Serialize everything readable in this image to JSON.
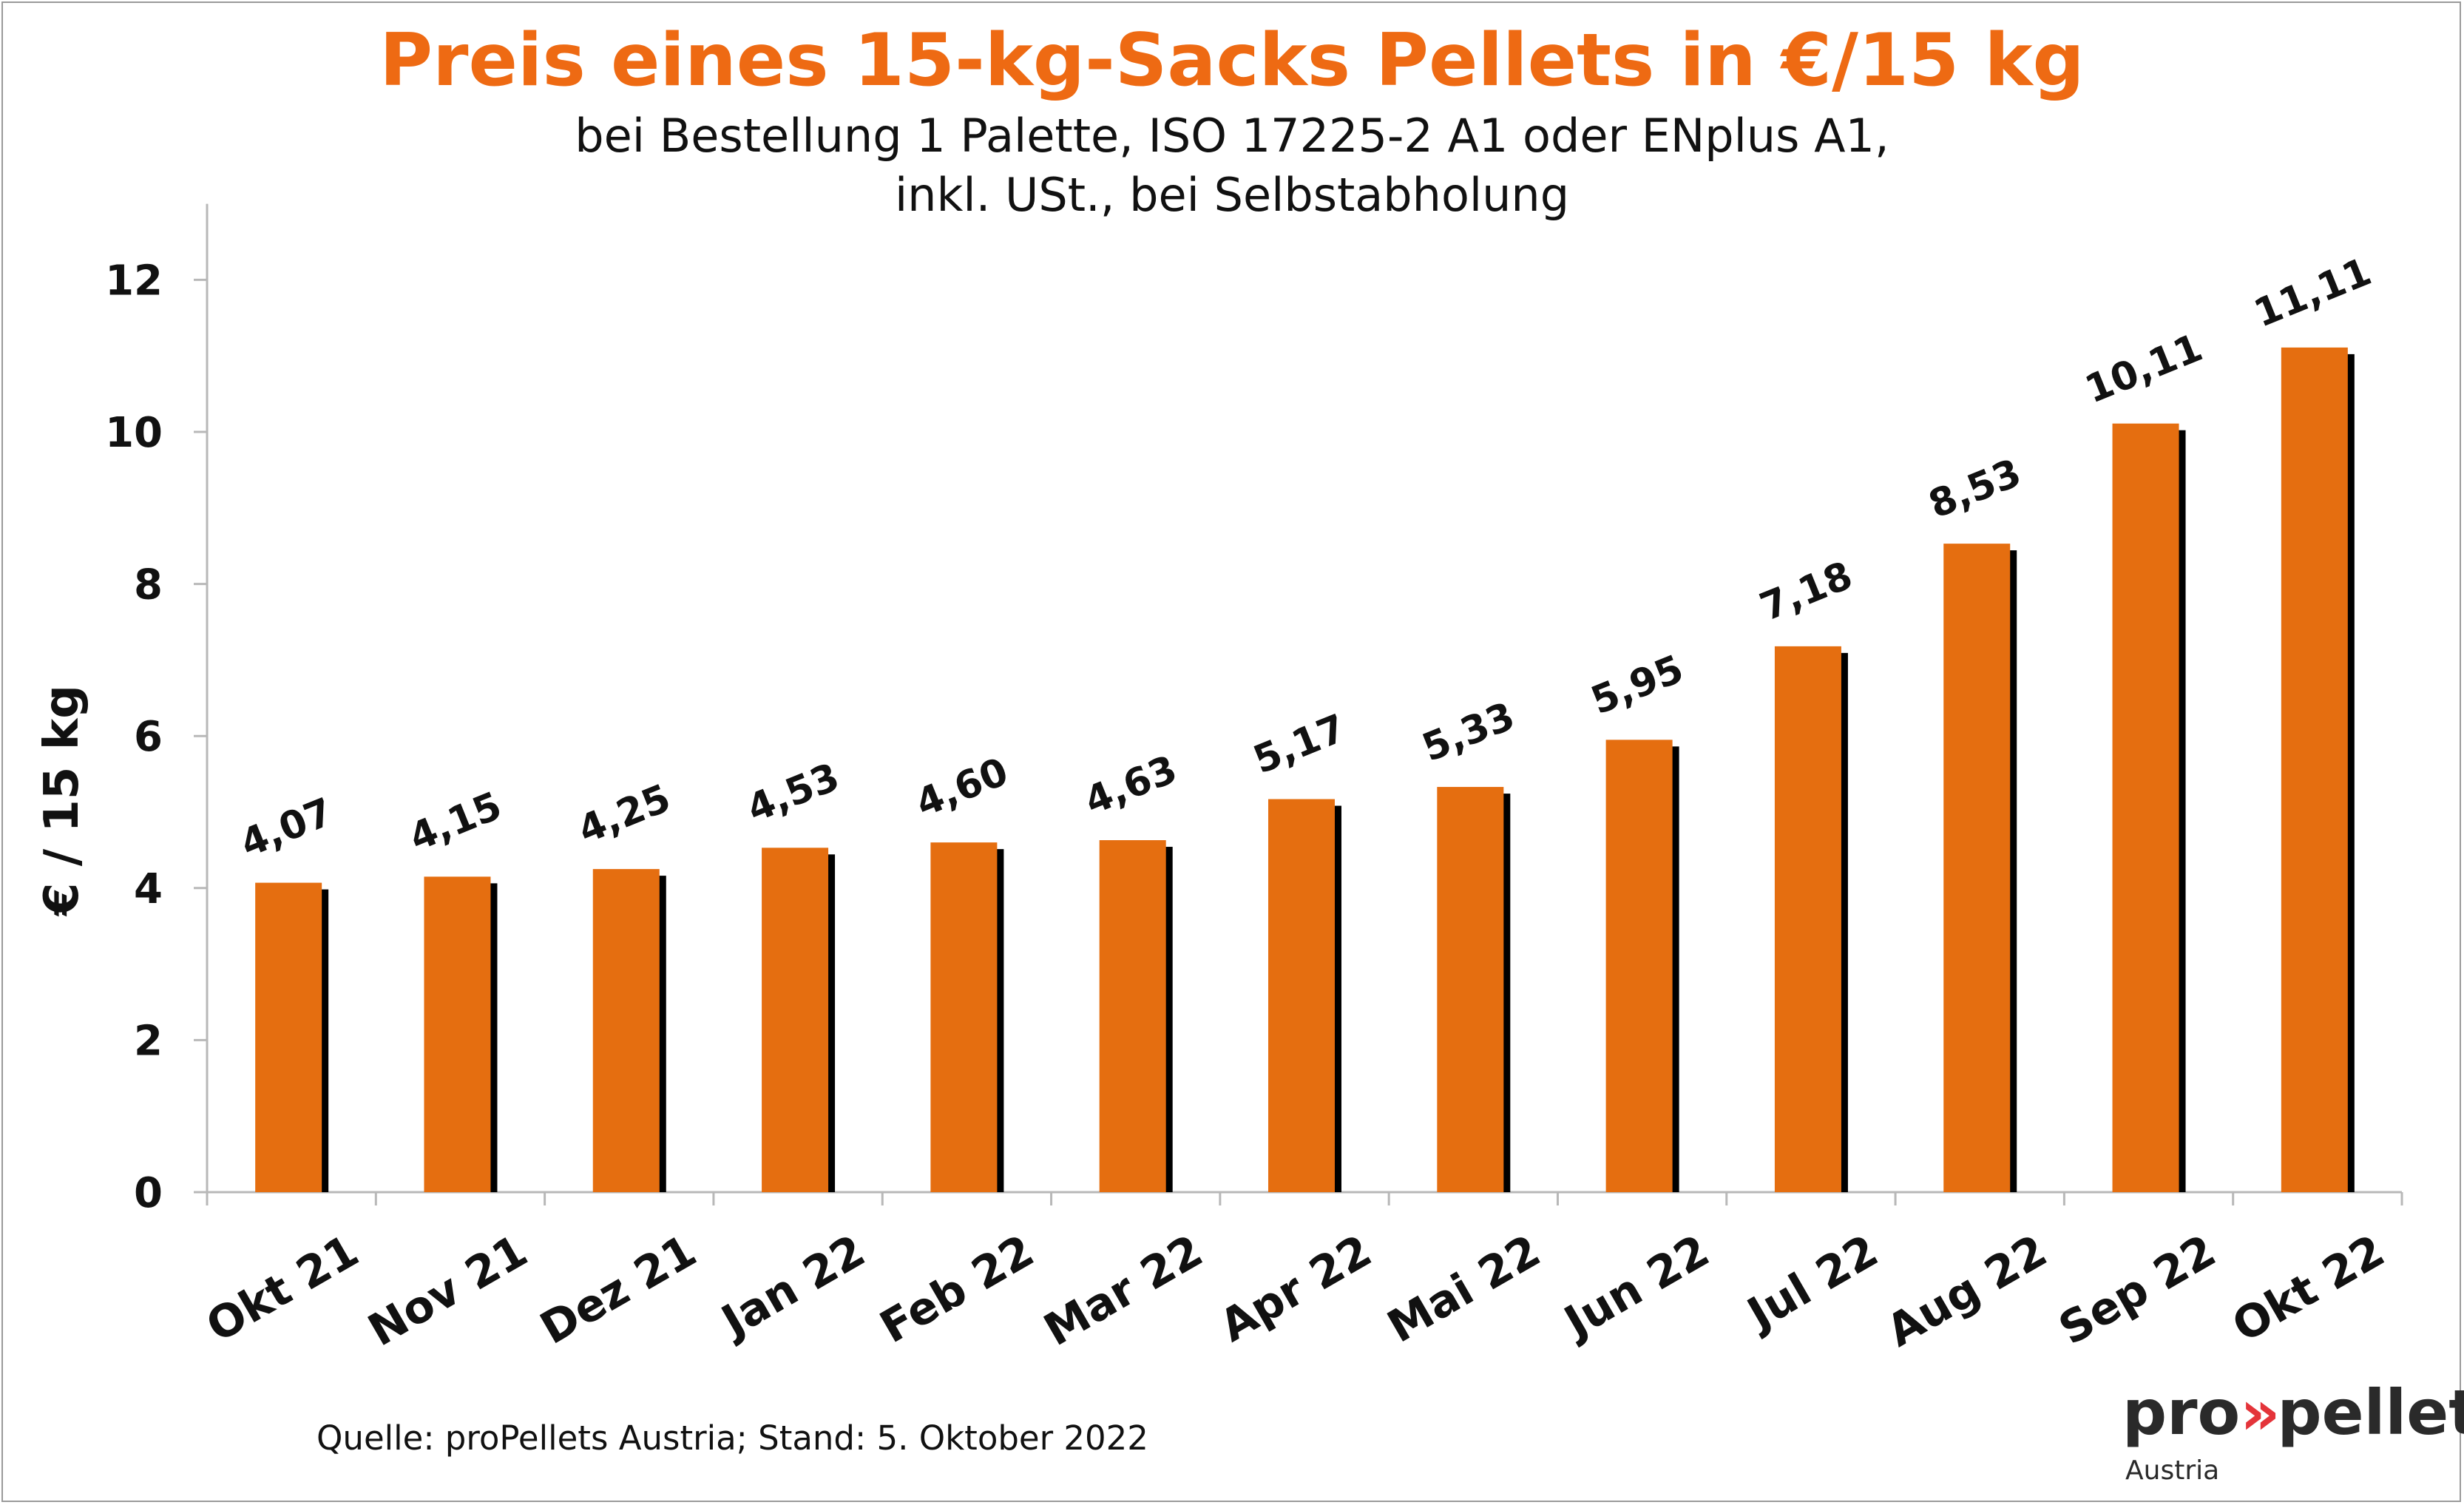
{
  "chart_data": {
    "type": "bar",
    "title": "Preis eines 15-kg-Sacks Pellets in €/15 kg",
    "subtitle_lines": [
      "bei Bestellung 1 Palette, ISO 17225-2 A1 oder ENplus A1,",
      "inkl. USt., bei Selbstabholung"
    ],
    "xlabel": "",
    "ylabel": "€ / 15 kg",
    "ylim": [
      0,
      13
    ],
    "yticks": [
      0,
      2,
      4,
      6,
      8,
      10,
      12
    ],
    "grid": false,
    "legend": "none",
    "categories": [
      "Okt 21",
      "Nov 21",
      "Dez 21",
      "Jan 22",
      "Feb 22",
      "Mar 22",
      "Apr 22",
      "Mai 22",
      "Jun 22",
      "Jul 22",
      "Aug 22",
      "Sep 22",
      "Okt 22"
    ],
    "values": [
      4.07,
      4.15,
      4.25,
      4.53,
      4.6,
      4.63,
      5.17,
      5.33,
      5.95,
      7.18,
      8.53,
      10.11,
      11.11
    ],
    "value_labels": [
      "4,07",
      "4,15",
      "4,25",
      "4,53",
      "4,60",
      "4,63",
      "5,17",
      "5,33",
      "5,95",
      "7,18",
      "8,53",
      "10,11",
      "11,11"
    ],
    "bar_color": "#e56e10",
    "shadow_color": "#000000"
  },
  "source": "Quelle: proPellets Austria; Stand: 5. Oktober 2022",
  "logo": {
    "main": "pro»pellets",
    "sub": "Austria",
    "accent_color": "#e4343a"
  },
  "colors": {
    "title": "#ee6a13",
    "text": "#111111",
    "axis": "#b8b8b8"
  }
}
